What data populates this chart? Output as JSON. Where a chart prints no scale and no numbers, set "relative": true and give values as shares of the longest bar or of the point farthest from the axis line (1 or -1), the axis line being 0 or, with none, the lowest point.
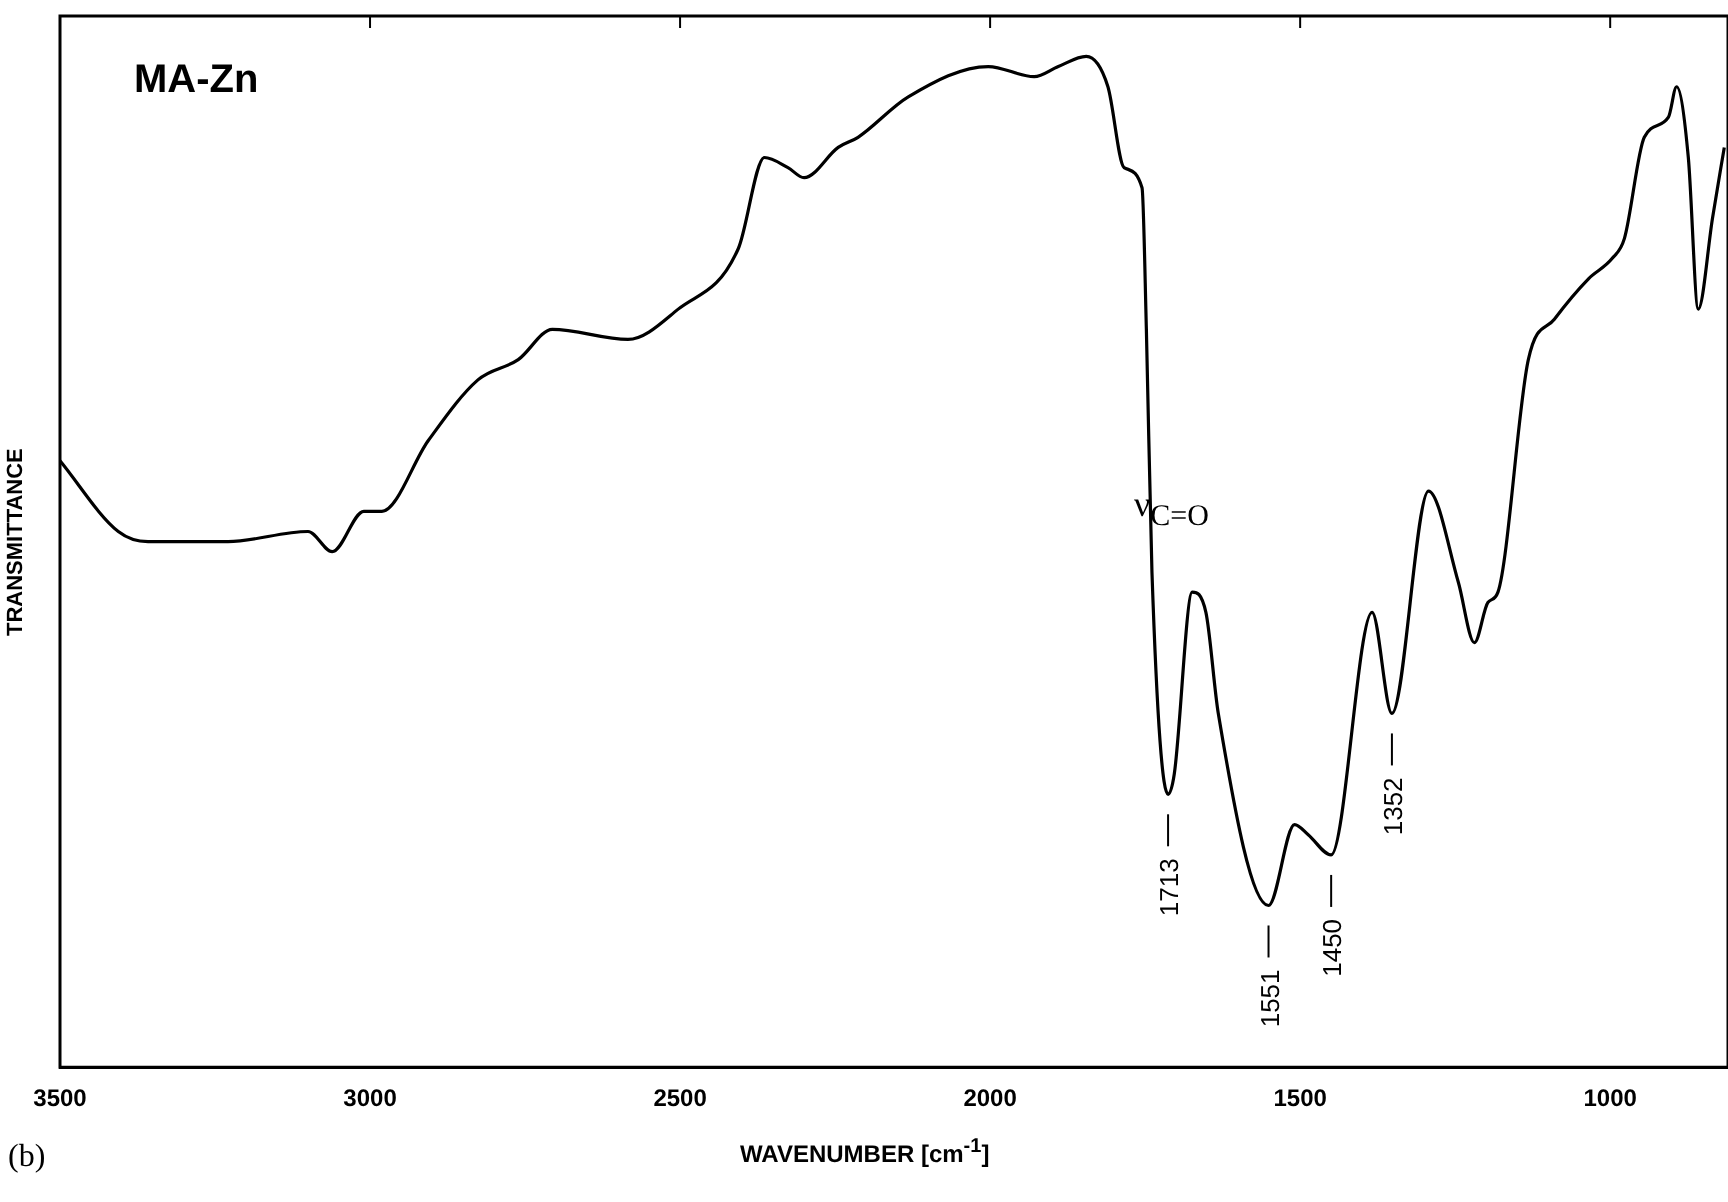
{
  "chart_data": {
    "type": "line",
    "title": "MA-Zn",
    "xlabel": "WAVENUMBER [cm$^{-1}$]",
    "ylabel": "TRANSMITTANCE",
    "relative": true,
    "color": "#000000",
    "marker": "none",
    "grid": false,
    "legend": false,
    "xlim": [
      3500,
      810
    ],
    "xticks": [
      3500,
      3000,
      2500,
      2000,
      1500,
      1000
    ],
    "x": [
      3500,
      3406,
      3358,
      3229,
      3100,
      3061,
      3010,
      2981,
      2906,
      2826,
      2761,
      2706,
      2584,
      2503,
      2406,
      2364,
      2326,
      2300,
      2245,
      2213,
      2132,
      2003,
      1929,
      1890,
      1845,
      1810,
      1784,
      1755,
      1748,
      1739,
      1713,
      1703,
      1674,
      1652,
      1632,
      1551,
      1509,
      1487,
      1450,
      1384,
      1352,
      1293,
      1245,
      1219,
      1197,
      1181,
      1132,
      1090,
      1035,
      997,
      977,
      945,
      906,
      893,
      874,
      858,
      835,
      816
    ],
    "values": [
      0.6,
      0.53,
      0.52,
      0.52,
      0.53,
      0.51,
      0.55,
      0.55,
      0.62,
      0.68,
      0.7,
      0.73,
      0.72,
      0.75,
      0.81,
      0.9,
      0.89,
      0.88,
      0.91,
      0.92,
      0.96,
      0.99,
      0.98,
      0.99,
      1.0,
      0.97,
      0.89,
      0.87,
      0.73,
      0.49,
      0.27,
      0.29,
      0.47,
      0.45,
      0.35,
      0.16,
      0.24,
      0.23,
      0.21,
      0.45,
      0.35,
      0.57,
      0.48,
      0.42,
      0.46,
      0.47,
      0.7,
      0.74,
      0.78,
      0.8,
      0.82,
      0.92,
      0.94,
      0.97,
      0.9,
      0.75,
      0.84,
      0.91
    ],
    "annotations": [
      "ν$_{C=O}$",
      "(b)",
      {
        "text": "1713",
        "x": 1713,
        "y": 0.27
      },
      {
        "text": "1551",
        "x": 1551,
        "y": 0.16
      },
      {
        "text": "1450",
        "x": 1450,
        "y": 0.21
      },
      {
        "text": "1352",
        "x": 1352,
        "y": 0.35
      }
    ]
  }
}
